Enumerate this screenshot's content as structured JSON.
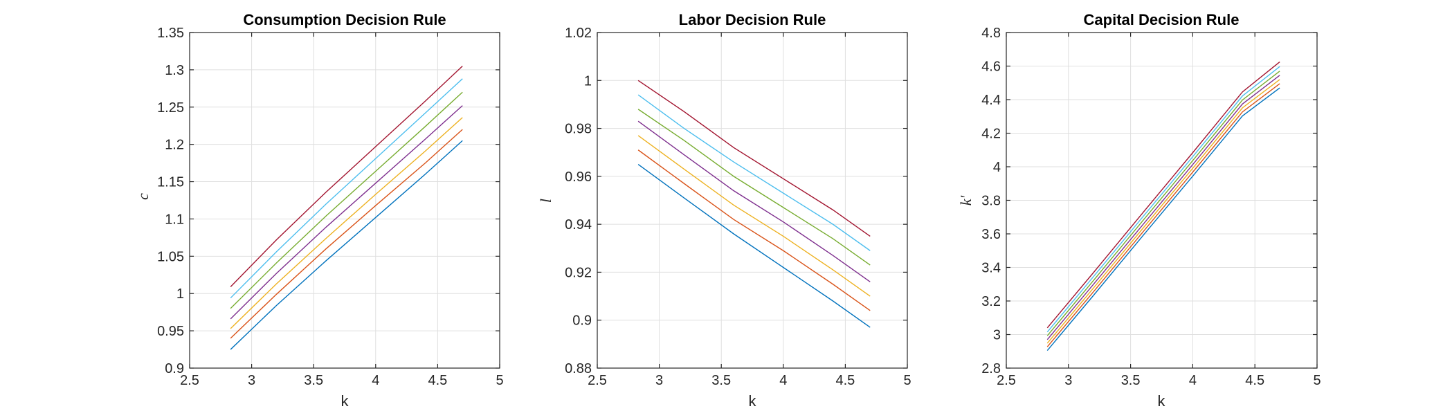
{
  "figure": {
    "background": "#ffffff",
    "grid": true
  },
  "series_colors": [
    "#0072BD",
    "#D95319",
    "#EDB120",
    "#7E2F8E",
    "#77AC30",
    "#4DBEEE",
    "#A2142F"
  ],
  "chart_data": [
    {
      "type": "line",
      "title": "Consumption Decision Rule",
      "xlabel": "k",
      "ylabel": "c",
      "xlim": [
        2.5,
        5
      ],
      "ylim": [
        0.9,
        1.35
      ],
      "xticks": [
        2.5,
        3,
        3.5,
        4,
        4.5,
        5
      ],
      "xtick_labels": [
        "2.5",
        "3",
        "3.5",
        "4",
        "4.5",
        "5"
      ],
      "yticks": [
        0.9,
        0.95,
        1.0,
        1.05,
        1.1,
        1.15,
        1.2,
        1.25,
        1.3,
        1.35
      ],
      "ytick_labels": [
        "0.9",
        "0.95",
        "1",
        "1.05",
        "1.1",
        "1.15",
        "1.2",
        "1.25",
        "1.3",
        "1.35"
      ],
      "grid": true,
      "x": [
        2.83,
        3.2,
        3.6,
        4.0,
        4.4,
        4.7
      ],
      "series": [
        {
          "color": "#0072BD",
          "values": [
            0.925,
            0.984,
            1.044,
            1.102,
            1.16,
            1.205
          ]
        },
        {
          "color": "#D95319",
          "values": [
            0.94,
            0.999,
            1.06,
            1.118,
            1.175,
            1.22
          ]
        },
        {
          "color": "#EDB120",
          "values": [
            0.953,
            1.013,
            1.074,
            1.133,
            1.191,
            1.236
          ]
        },
        {
          "color": "#7E2F8E",
          "values": [
            0.966,
            1.027,
            1.089,
            1.148,
            1.207,
            1.252
          ]
        },
        {
          "color": "#77AC30",
          "values": [
            0.98,
            1.041,
            1.104,
            1.164,
            1.224,
            1.27
          ]
        },
        {
          "color": "#4DBEEE",
          "values": [
            0.994,
            1.056,
            1.12,
            1.181,
            1.242,
            1.288
          ]
        },
        {
          "color": "#A2142F",
          "values": [
            1.009,
            1.072,
            1.136,
            1.197,
            1.258,
            1.305
          ]
        }
      ]
    },
    {
      "type": "line",
      "title": "Labor Decision Rule",
      "xlabel": "k",
      "ylabel": "l",
      "xlim": [
        2.5,
        5
      ],
      "ylim": [
        0.88,
        1.02
      ],
      "xticks": [
        2.5,
        3,
        3.5,
        4,
        4.5,
        5
      ],
      "xtick_labels": [
        "2.5",
        "3",
        "3.5",
        "4",
        "4.5",
        "5"
      ],
      "yticks": [
        0.88,
        0.9,
        0.92,
        0.94,
        0.96,
        0.98,
        1.0,
        1.02
      ],
      "ytick_labels": [
        "0.88",
        "0.9",
        "0.92",
        "0.94",
        "0.96",
        "0.98",
        "1",
        "1.02"
      ],
      "grid": true,
      "x": [
        2.83,
        3.2,
        3.6,
        4.0,
        4.4,
        4.7
      ],
      "series": [
        {
          "color": "#0072BD",
          "values": [
            0.965,
            0.951,
            0.936,
            0.922,
            0.908,
            0.897
          ]
        },
        {
          "color": "#D95319",
          "values": [
            0.971,
            0.957,
            0.942,
            0.929,
            0.915,
            0.904
          ]
        },
        {
          "color": "#EDB120",
          "values": [
            0.977,
            0.963,
            0.948,
            0.935,
            0.921,
            0.91
          ]
        },
        {
          "color": "#7E2F8E",
          "values": [
            0.983,
            0.969,
            0.954,
            0.941,
            0.927,
            0.916
          ]
        },
        {
          "color": "#77AC30",
          "values": [
            0.988,
            0.975,
            0.96,
            0.947,
            0.934,
            0.923
          ]
        },
        {
          "color": "#4DBEEE",
          "values": [
            0.994,
            0.98,
            0.966,
            0.953,
            0.94,
            0.929
          ]
        },
        {
          "color": "#A2142F",
          "values": [
            1.0,
            0.987,
            0.972,
            0.959,
            0.946,
            0.935
          ]
        }
      ]
    },
    {
      "type": "line",
      "title": "Capital Decision Rule",
      "xlabel": "k",
      "ylabel": "k'",
      "xlim": [
        2.5,
        5
      ],
      "ylim": [
        2.8,
        4.8
      ],
      "xticks": [
        2.5,
        3,
        3.5,
        4,
        4.5,
        5
      ],
      "xtick_labels": [
        "2.5",
        "3",
        "3.5",
        "4",
        "4.5",
        "5"
      ],
      "yticks": [
        2.8,
        3.0,
        3.2,
        3.4,
        3.6,
        3.8,
        4.0,
        4.2,
        4.4,
        4.6,
        4.8
      ],
      "ytick_labels": [
        "2.8",
        "3",
        "3.2",
        "3.4",
        "3.6",
        "3.8",
        "4",
        "4.2",
        "4.4",
        "4.6",
        "4.8"
      ],
      "grid": true,
      "x": [
        2.83,
        3.2,
        3.6,
        4.0,
        4.4,
        4.7
      ],
      "series": [
        {
          "color": "#0072BD",
          "values": [
            2.905,
            3.232,
            3.59,
            3.944,
            4.303,
            4.47
          ]
        },
        {
          "color": "#D95319",
          "values": [
            2.927,
            3.254,
            3.612,
            3.968,
            4.327,
            4.495
          ]
        },
        {
          "color": "#EDB120",
          "values": [
            2.948,
            3.276,
            3.634,
            3.991,
            4.351,
            4.52
          ]
        },
        {
          "color": "#7E2F8E",
          "values": [
            2.97,
            3.298,
            3.656,
            4.013,
            4.374,
            4.545
          ]
        },
        {
          "color": "#77AC30",
          "values": [
            2.993,
            3.321,
            3.68,
            4.037,
            4.398,
            4.57
          ]
        },
        {
          "color": "#4DBEEE",
          "values": [
            3.015,
            3.344,
            3.703,
            4.06,
            4.422,
            4.597
          ]
        },
        {
          "color": "#A2142F",
          "values": [
            3.04,
            3.368,
            3.727,
            4.084,
            4.446,
            4.625
          ]
        }
      ]
    }
  ]
}
